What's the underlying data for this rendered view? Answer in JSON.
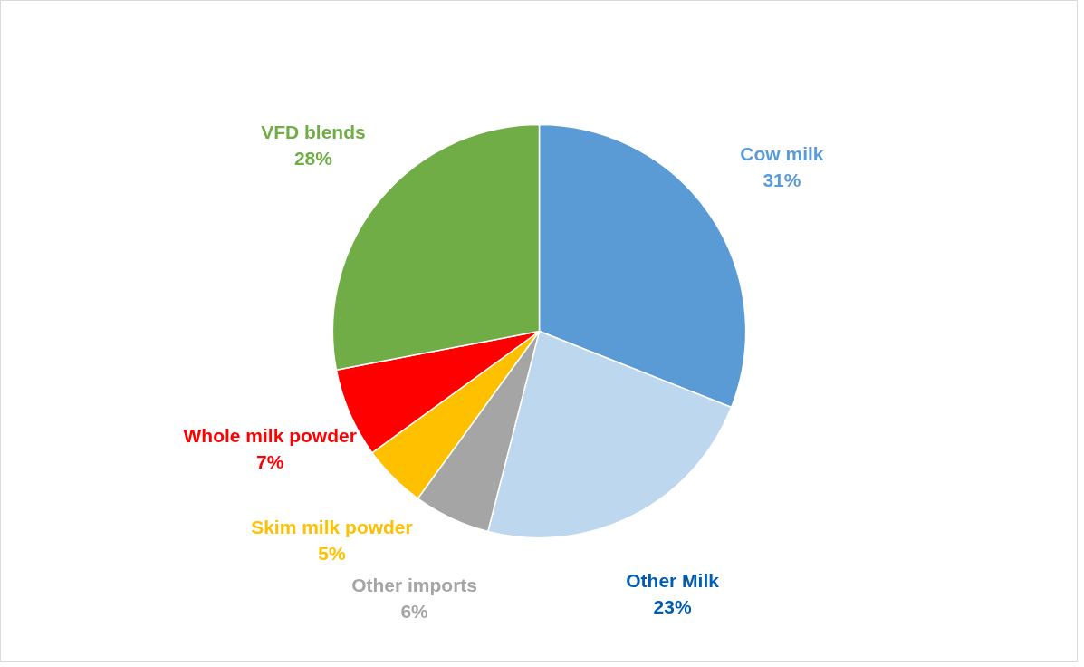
{
  "chart_data": {
    "type": "pie",
    "categories": [
      "Cow milk",
      "Other Milk",
      "Other imports",
      "Skim milk powder",
      "Whole milk powder",
      "VFD blends"
    ],
    "values": [
      31,
      23,
      6,
      5,
      7,
      28
    ],
    "colors": [
      "#5b9bd5",
      "#bdd7ee",
      "#a5a5a5",
      "#ffc000",
      "#ff0000",
      "#70ad47"
    ],
    "value_labels": [
      "31%",
      "23%",
      "6%",
      "5%",
      "7%",
      "28%"
    ]
  }
}
